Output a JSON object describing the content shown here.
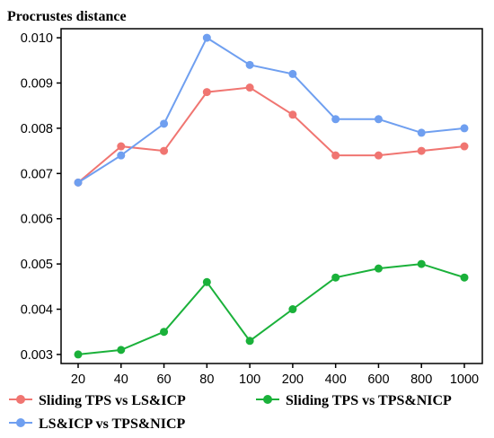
{
  "chart_data": {
    "type": "line",
    "title": "Procrustes distance",
    "categories": [
      "20",
      "40",
      "60",
      "80",
      "100",
      "200",
      "400",
      "600",
      "800",
      "1000"
    ],
    "ylim": [
      0.0028,
      0.0102
    ],
    "y_ticks": [
      "0.003",
      "0.004",
      "0.005",
      "0.006",
      "0.007",
      "0.008",
      "0.009",
      "0.010"
    ],
    "grid": false,
    "legend_position": "bottom",
    "series": [
      {
        "name": "Sliding TPS vs LS&ICP",
        "color": "#f07571",
        "values": [
          0.0068,
          0.0076,
          0.0075,
          0.0088,
          0.0089,
          0.0083,
          0.0074,
          0.0074,
          0.0075,
          0.0076
        ]
      },
      {
        "name": "LS&ICP vs TPS&NICP",
        "color": "#6f9ff0",
        "values": [
          0.0068,
          0.0074,
          0.0081,
          0.01,
          0.0094,
          0.0092,
          0.0082,
          0.0082,
          0.0079,
          0.008
        ]
      },
      {
        "name": "Sliding TPS vs TPS&NICP",
        "color": "#1ab13a",
        "values": [
          0.003,
          0.0031,
          0.0035,
          0.0046,
          0.0033,
          0.004,
          0.0047,
          0.0049,
          0.005,
          0.0047
        ]
      }
    ]
  }
}
